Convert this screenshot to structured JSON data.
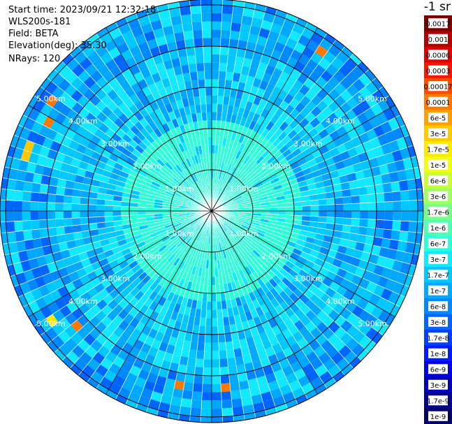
{
  "header": {
    "start_time": "Start time: 2023/09/21 12:32:18",
    "instrument": "WLS200s-181",
    "field": "Field: BETA",
    "elevation": "Elevation(deg): 35.30",
    "nrays": "NRays: 120"
  },
  "chart_data": {
    "type": "heatmap",
    "projection": "polar-ppi",
    "nrays": 120,
    "range_rings_km": [
      1,
      2,
      3,
      4,
      5
    ],
    "range_labels": [
      "1.00km",
      "2.00km",
      "3.00km",
      "4.00km",
      "5.00km"
    ],
    "spokes_deg_step": 30,
    "colorbar": {
      "units_label": "-1 sr",
      "ticks": [
        "0.0017",
        "0.001",
        "0.0006",
        "0.0003",
        "0.00017",
        "0.0001",
        "6e-5",
        "3e-5",
        "1.7e-5",
        "1e-5",
        "6e-6",
        "3e-6",
        "1.7e-6",
        "1e-6",
        "6e-7",
        "3e-7",
        "1.7e-7",
        "1e-7",
        "6e-8",
        "3e-8",
        "1.7e-8",
        "1e-8",
        "6e-9",
        "3e-9",
        "1.7e-9",
        "1e-9"
      ],
      "colors": [
        "#7a0000",
        "#b00000",
        "#dc0000",
        "#ff1400",
        "#ff4a00",
        "#ff7800",
        "#ffa000",
        "#ffc800",
        "#ffea00",
        "#f0ff10",
        "#c8ff38",
        "#a0ff60",
        "#78ff88",
        "#50ffb0",
        "#2effd8",
        "#12e8ff",
        "#00c8ff",
        "#00a8ff",
        "#0088ff",
        "#0064ff",
        "#0040ff",
        "#001cff",
        "#0000e0",
        "#0000b8",
        "#000090",
        "#000068"
      ]
    }
  }
}
